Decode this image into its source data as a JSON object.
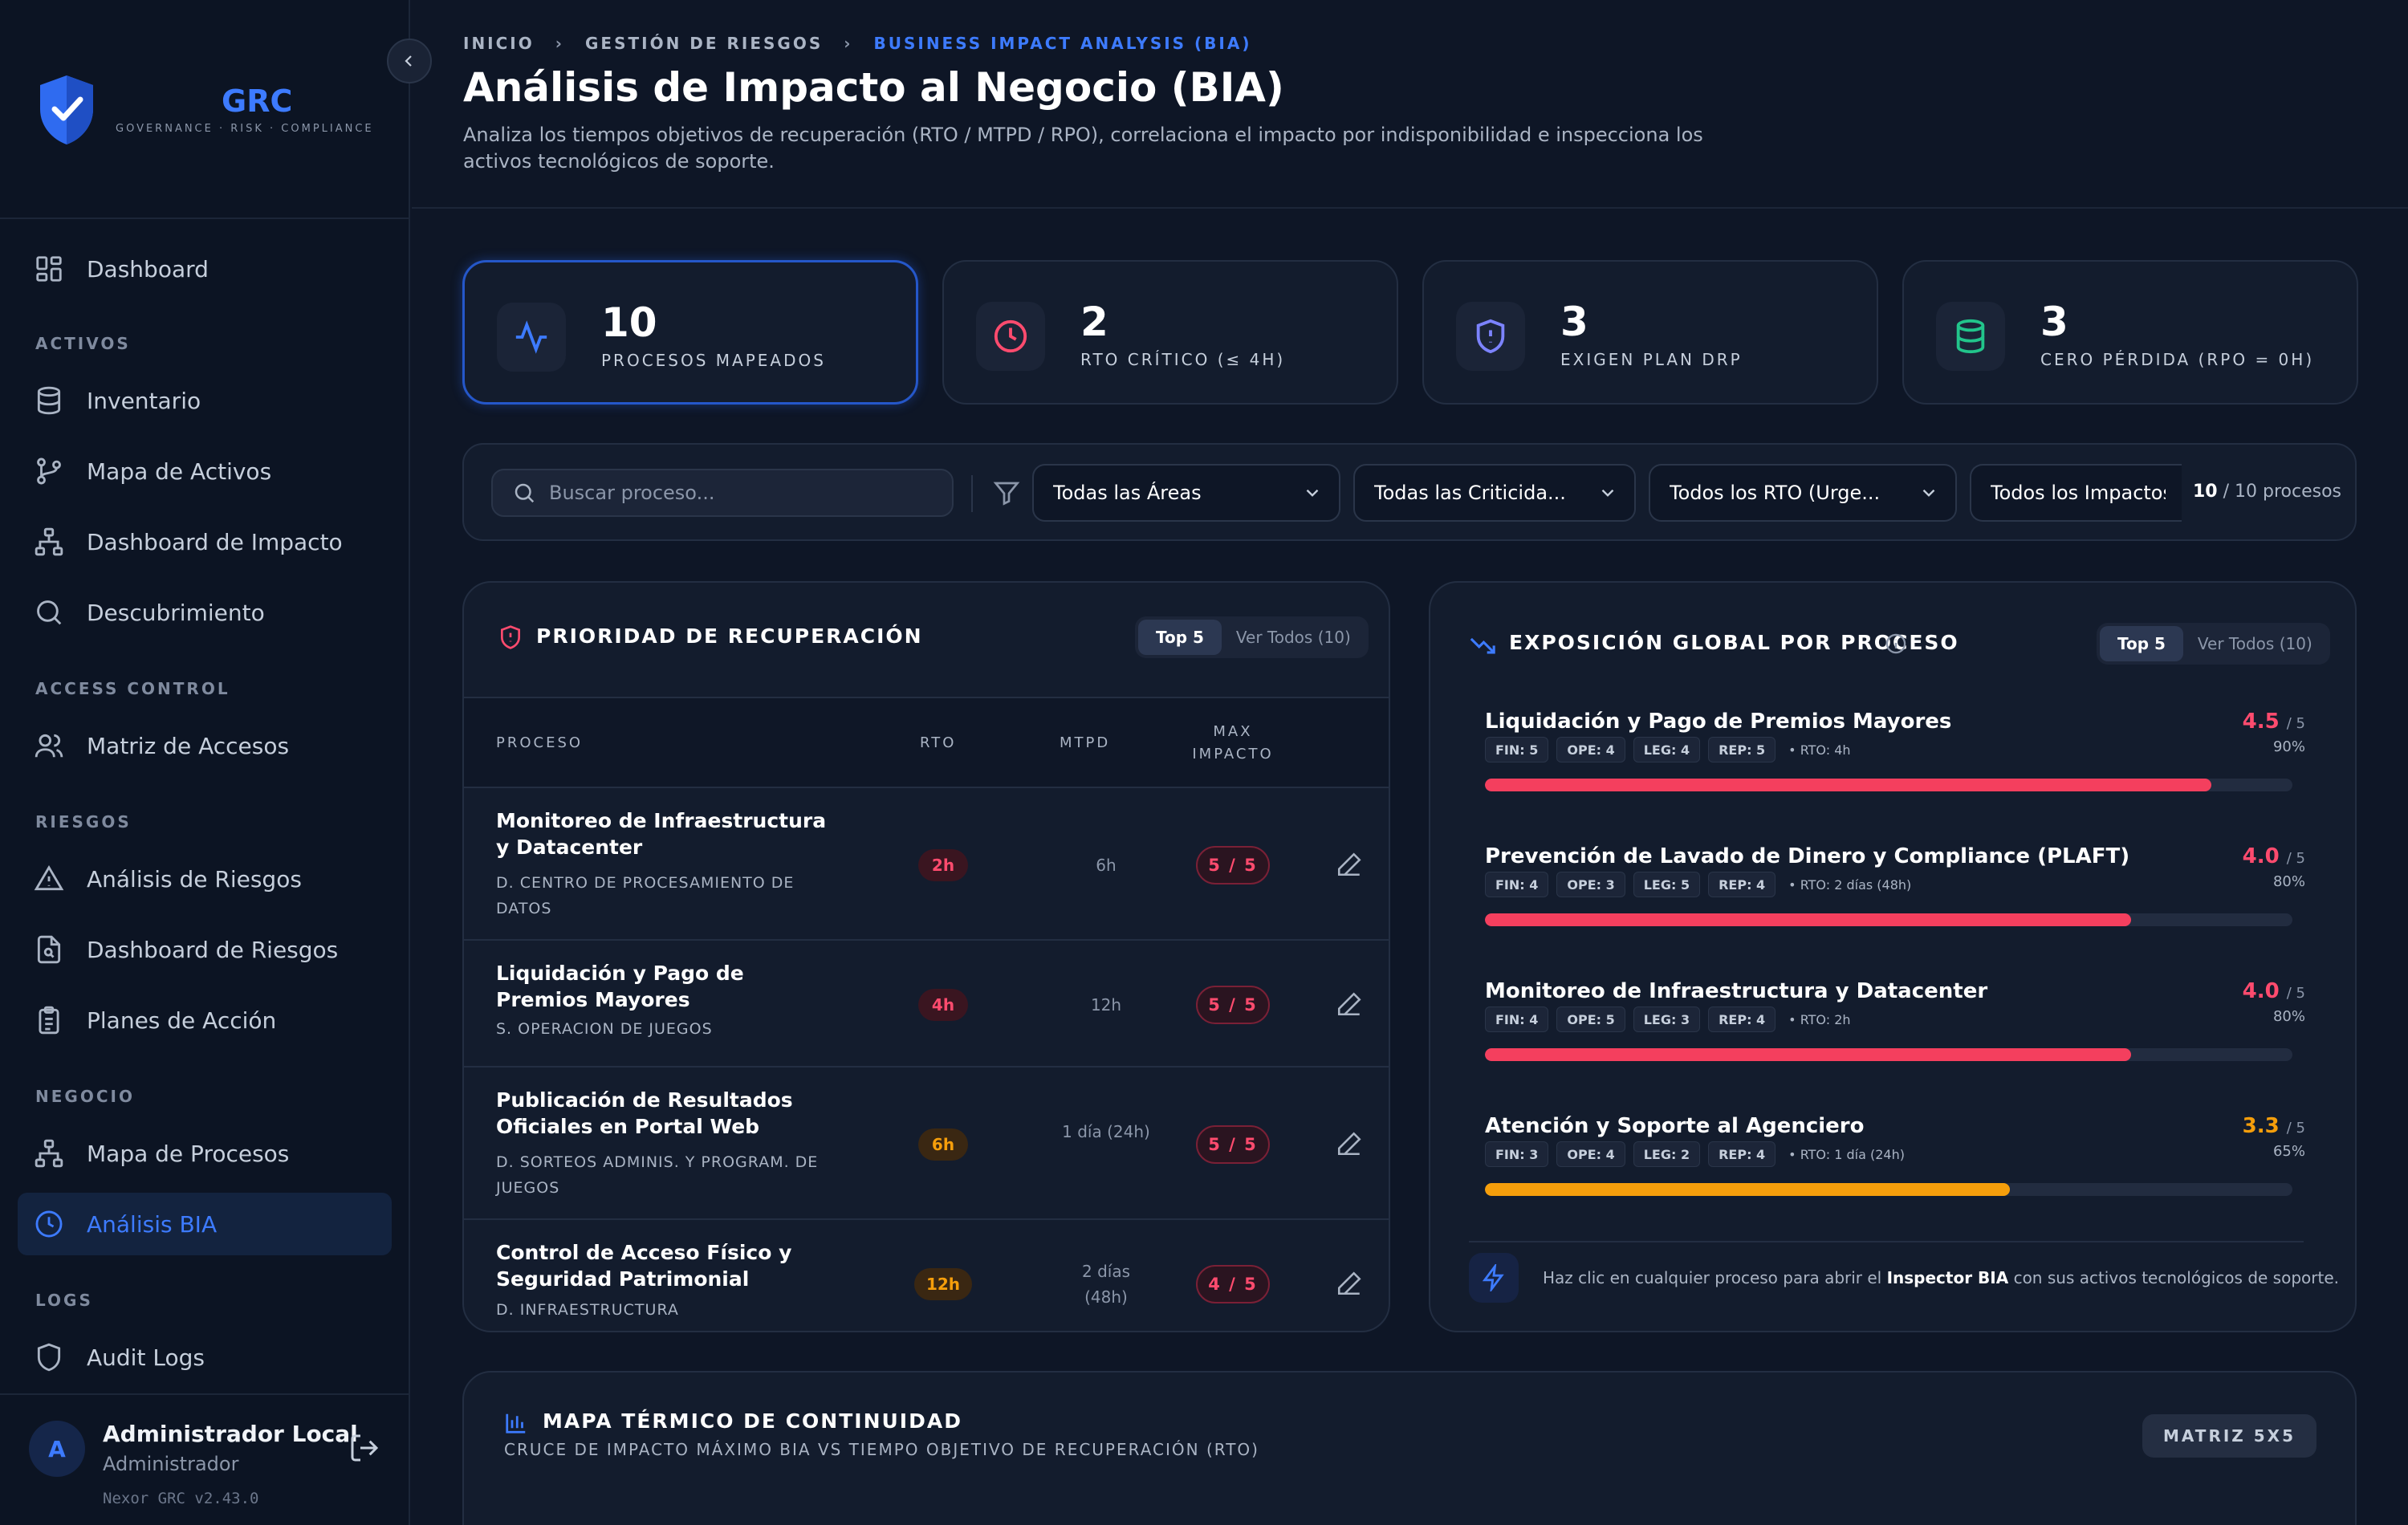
{
  "sidebar": {
    "brand_name": "GRC",
    "brand_sub": "GOVERNANCE · RISK · COMPLIANCE",
    "dashboard": "Dashboard",
    "sections": {
      "activos": "ACTIVOS",
      "access": "ACCESS CONTROL",
      "riesgos": "RIESGOS",
      "negocio": "NEGOCIO",
      "logs": "LOGS"
    },
    "items": {
      "inventario": "Inventario",
      "mapa_activos": "Mapa de Activos",
      "dashboard_impacto": "Dashboard de Impacto",
      "descubrimiento": "Descubrimiento",
      "matriz_accesos": "Matriz de Accesos",
      "analisis_riesgos": "Análisis de Riesgos",
      "dashboard_riesgos": "Dashboard de Riesgos",
      "planes_accion": "Planes de Acción",
      "mapa_procesos": "Mapa de Procesos",
      "analisis_bia": "Análisis BIA",
      "audit_logs": "Audit Logs"
    },
    "user": {
      "initial": "A",
      "name": "Administrador Local",
      "role": "Administrador",
      "version": "Nexor GRC v2.43.0"
    }
  },
  "header": {
    "breadcrumb": [
      "INICIO",
      "GESTIÓN DE RIESGOS",
      "BUSINESS IMPACT ANALYSIS (BIA)"
    ],
    "title": "Análisis de Impacto al Negocio (BIA)",
    "description": "Analiza los tiempos objetivos de recuperación (RTO / MTPD / RPO), correlaciona el impacto por indisponibilidad e inspecciona los activos tecnológicos de soporte."
  },
  "stats": [
    {
      "value": "10",
      "label": "PROCESOS MAPEADOS",
      "color": "#3d7bff"
    },
    {
      "value": "2",
      "label": "RTO CRÍTICO (≤ 4H)",
      "color": "#ff4b6e"
    },
    {
      "value": "3",
      "label": "EXIGEN PLAN DRP",
      "color": "#7c83ff"
    },
    {
      "value": "3",
      "label": "CERO PÉRDIDA (RPO = 0H)",
      "color": "#22c58b"
    }
  ],
  "filters": {
    "search_placeholder": "Buscar proceso...",
    "area": "Todas las Áreas",
    "criticidad": "Todas las Criticida...",
    "rto": "Todos los RTO (Urge...",
    "impactos": "Todos los Impactos",
    "count_shown": "10",
    "count_total": "/ 10 procesos"
  },
  "priority_panel": {
    "title": "PRIORIDAD DE RECUPERACIÓN",
    "toggle_on": "Top 5",
    "toggle_off": "Ver Todos (10)",
    "columns": {
      "proceso": "PROCESO",
      "rto": "RTO",
      "mtpd": "MTPD",
      "max_impacto": "MAX IMPACTO"
    },
    "rows": [
      {
        "name": "Monitoreo de Infraestructura y Datacenter",
        "area": "D. CENTRO DE PROCESAMIENTO DE DATOS",
        "rto": "2h",
        "mtpd": "6h",
        "impact": "5 / 5"
      },
      {
        "name": "Liquidación y Pago de Premios Mayores",
        "area": "S. OPERACION DE JUEGOS",
        "rto": "4h",
        "mtpd": "12h",
        "impact": "5 / 5"
      },
      {
        "name": "Publicación de Resultados Oficiales en Portal Web",
        "area": "D. SORTEOS ADMINIS. Y PROGRAM. DE JUEGOS",
        "rto": "6h",
        "mtpd": "1 día (24h)",
        "impact": "5 / 5"
      },
      {
        "name": "Control de Acceso Físico y Seguridad Patrimonial",
        "area": "D. INFRAESTRUCTURA",
        "rto": "12h",
        "mtpd": "2 días (48h)",
        "impact": "4 / 5"
      }
    ]
  },
  "exposure_panel": {
    "title": "EXPOSICIÓN GLOBAL POR PROCESO",
    "toggle_on": "Top 5",
    "toggle_off": "Ver Todos (10)",
    "score_suffix": "/ 5",
    "rows": [
      {
        "name": "Liquidación y Pago de Premios Mayores",
        "score": "4.5",
        "pct": "90%",
        "fill": 0.9,
        "color": "#f43f5e",
        "chips": [
          "FIN: 5",
          "OPE: 4",
          "LEG: 4",
          "REP: 5"
        ],
        "rto": "• RTO: 4h"
      },
      {
        "name": "Prevención de Lavado de Dinero y Compliance (PLAFT)",
        "score": "4.0",
        "pct": "80%",
        "fill": 0.8,
        "color": "#f43f5e",
        "chips": [
          "FIN: 4",
          "OPE: 3",
          "LEG: 5",
          "REP: 4"
        ],
        "rto": "• RTO: 2 días (48h)"
      },
      {
        "name": "Monitoreo de Infraestructura y Datacenter",
        "score": "4.0",
        "pct": "80%",
        "fill": 0.8,
        "color": "#f43f5e",
        "chips": [
          "FIN: 4",
          "OPE: 5",
          "LEG: 3",
          "REP: 4"
        ],
        "rto": "• RTO: 2h"
      },
      {
        "name": "Atención y Soporte al Agenciero",
        "score": "3.3",
        "pct": "65%",
        "fill": 0.65,
        "color": "#f59e0b",
        "chips": [
          "FIN: 3",
          "OPE: 4",
          "LEG: 2",
          "REP: 4"
        ],
        "rto": "• RTO: 1 día (24h)"
      }
    ],
    "hint_before": "Haz clic en cualquier proceso para abrir el ",
    "hint_bold": "Inspector BIA",
    "hint_after": " con sus activos tecnológicos de soporte."
  },
  "heatmap": {
    "title": "MAPA TÉRMICO DE CONTINUIDAD",
    "subtitle": "CRUCE DE IMPACTO MÁXIMO BIA VS TIEMPO OBJETIVO DE RECUPERACIÓN (RTO)",
    "badge": "MATRIZ 5X5"
  }
}
